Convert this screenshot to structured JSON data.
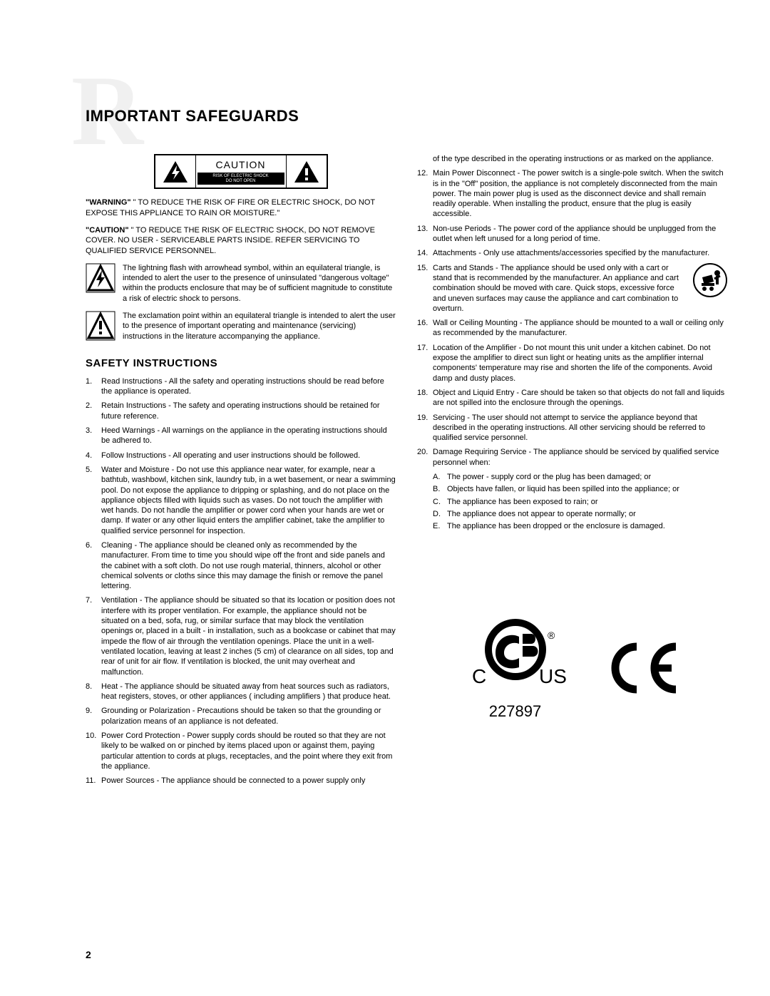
{
  "watermark_letter": "R",
  "heading": "IMPORTANT SAFEGUARDS",
  "caution_box": {
    "title": "CAUTION",
    "sub_line1": "RISK OF ELECTRIC SHOCK",
    "sub_line2": "DO NOT OPEN"
  },
  "warning": {
    "label": "\"WARNING\"",
    "text": " \" TO REDUCE THE RISK OF FIRE OR ELECTRIC SHOCK, DO NOT EXPOSE THIS APPLIANCE TO RAIN OR MOISTURE.\""
  },
  "caution": {
    "label": "\"CAUTION\"",
    "text": " \" TO REDUCE THE RISK OF ELECTRIC SHOCK, DO NOT REMOVE COVER. NO USER - SERVICEABLE PARTS INSIDE. REFER SERVICING TO QUALIFIED SERVICE PERSONNEL."
  },
  "symbol_bolt": "The lightning flash with arrowhead symbol, within an equilateral triangle, is intended to alert the user to the presence of uninsulated \"dangerous voltage\" within the products enclosure that may be of sufficient magnitude to constitute a risk of electric shock to persons.",
  "symbol_excl": "The exclamation point within an equilateral triangle is intended to alert the user to the presence of important operating and maintenance (servicing) instructions in the literature accompanying the appliance.",
  "safety_heading": "SAFETY INSTRUCTIONS",
  "items_left": [
    {
      "n": "1.",
      "t": "Read Instructions - All the safety and operating instructions should be read before the appliance is operated."
    },
    {
      "n": "2.",
      "t": "Retain Instructions - The safety and operating instructions should be retained for future reference."
    },
    {
      "n": "3.",
      "t": "Heed Warnings - All warnings on the appliance in the operating instructions should be adhered to."
    },
    {
      "n": "4.",
      "t": "Follow Instructions - All operating and user instructions should be followed."
    },
    {
      "n": "5.",
      "t": "Water and Moisture - Do not use this appliance near water, for example, near a bathtub, washbowl, kitchen sink, laundry tub, in a wet basement, or near a swimming pool. Do not expose the appliance to dripping or splashing, and do not place on the appliance objects filled with liquids such as vases. Do not touch the amplifier with wet hands. Do not handle the amplifier or power cord when your hands are wet or damp. If water or any other liquid enters the amplifier cabinet, take the amplifier to qualified service personnel for inspection."
    },
    {
      "n": "6.",
      "t": "Cleaning - The appliance should be cleaned only as recommended by the manufacturer. From time to time you should wipe off the front and side panels and the cabinet with a soft cloth. Do not use rough material, thinners, alcohol or other chemical solvents or cloths since this may damage the finish or remove the panel lettering."
    },
    {
      "n": "7.",
      "t": "Ventilation - The appliance should be situated so that its location or position does not interfere with its proper ventilation. For example, the appliance should not be situated on a bed, sofa, rug, or similar surface that may block the ventilation openings or, placed in a built - in installation, such as a bookcase or cabinet that may impede the flow of air through the ventilation openings. Place the unit in a well-ventilated location, leaving at least 2 inches (5 cm) of clearance on all sides, top and rear of unit for air flow. If ventilation is blocked, the unit may overheat and malfunction."
    },
    {
      "n": "8.",
      "t": "Heat - The appliance should be situated away from heat sources such as radiators, heat registers, stoves, or other appliances ( including amplifiers ) that produce heat."
    },
    {
      "n": "9.",
      "t": "Grounding or Polarization - Precautions should be taken so that the grounding or polarization means of an appliance is not defeated."
    },
    {
      "n": "10.",
      "t": "Power Cord Protection - Power supply cords should be routed so that they are not likely to be walked on or pinched by items placed upon or against them, paying particular attention to cords at plugs, receptacles, and the point where they exit from the appliance."
    },
    {
      "n": "11.",
      "t": "Power Sources - The appliance should be connected to a power supply only"
    }
  ],
  "right_intro": "of the type described in the operating instructions or as marked on the appliance.",
  "items_right": [
    {
      "n": "12.",
      "t": "Main Power Disconnect - The power switch is a single-pole switch. When the switch is in the \"Off\" position, the appliance is not completely disconnected from the main power. The main power plug is used as the disconnect device and shall remain readily operable. When installing the product, ensure that the plug is easily accessible."
    },
    {
      "n": "13.",
      "t": "Non-use Periods - The power cord of the appliance should be unplugged from the outlet when left unused for a long period of time."
    },
    {
      "n": "14.",
      "t": "Attachments - Only use attachments/accessories specified by the manufacturer."
    },
    {
      "n": "15.",
      "t": "Carts and Stands - The appliance should be used only with a cart or stand that is recommended by the manufacturer. An appliance and cart combination should be moved with care. Quick stops, excessive force and uneven surfaces may cause the appliance and cart combination to overturn.",
      "cart": true
    },
    {
      "n": "16.",
      "t": "Wall or Ceiling Mounting - The appliance should be mounted to a wall or ceiling only as recommended by the manufacturer."
    },
    {
      "n": "17.",
      "t": "Location of the Amplifier - Do not mount this unit under a kitchen cabinet. Do not expose the amplifier to direct sun light or heating units as the amplifier internal components' temperature may rise and shorten the life of the components. Avoid damp and dusty places."
    },
    {
      "n": "18.",
      "t": "Object and Liquid Entry - Care should be taken so that objects do not fall and liquids are not spilled into the enclosure through the openings."
    },
    {
      "n": "19.",
      "t": "Servicing - The user should not attempt to service the appliance beyond that described in the operating instructions. All other servicing should be referred to qualified service personnel."
    },
    {
      "n": "20.",
      "t": "Damage Requiring Service - The appliance should be serviced by qualified service personnel when:"
    }
  ],
  "sub_items": [
    {
      "l": "A.",
      "t": "The power - supply cord or the plug has been damaged; or"
    },
    {
      "l": "B.",
      "t": "Objects have fallen, or liquid has been spilled into the appliance; or"
    },
    {
      "l": "C.",
      "t": "The appliance has been exposed to rain; or"
    },
    {
      "l": "D.",
      "t": "The appliance does not appear to operate normally; or"
    },
    {
      "l": "E.",
      "t": "The appliance has been dropped or the enclosure is damaged."
    }
  ],
  "csa": {
    "c": "C",
    "us": "US",
    "r": "®",
    "number": "227897"
  },
  "page_number": "2",
  "colors": {
    "text": "#000000",
    "bg": "#ffffff",
    "watermark": "#f0f0f0"
  }
}
